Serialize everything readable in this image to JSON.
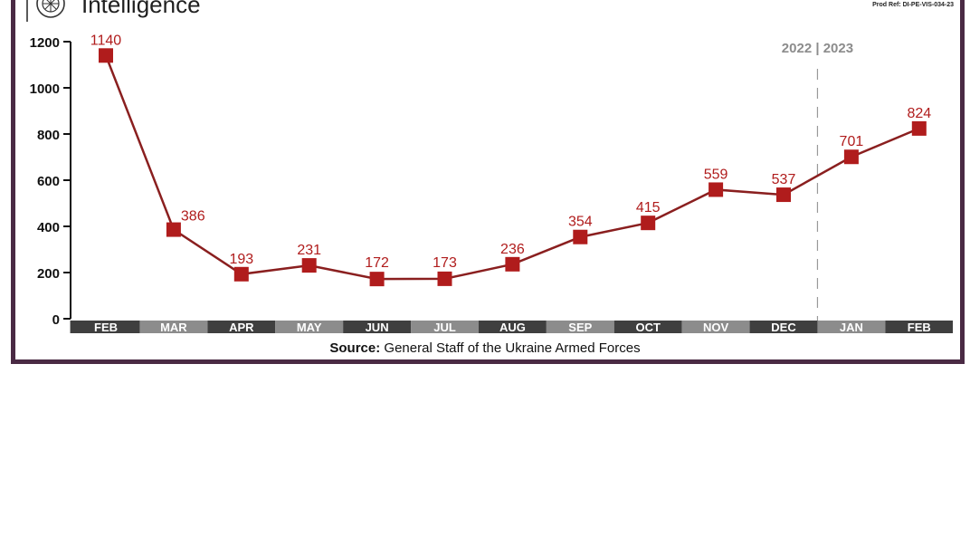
{
  "header": {
    "title": "Intelligence",
    "prod_ref": "Prod Ref: DI-PE-VIS-034-23"
  },
  "colors": {
    "accent": "#b01c1c",
    "line": "#8a1f1f",
    "frame": "#4a2a44",
    "year_label": "#8c8c8c"
  },
  "chart_data": {
    "type": "line",
    "categories": [
      "FEB",
      "MAR",
      "APR",
      "MAY",
      "JUN",
      "JUL",
      "AUG",
      "SEP",
      "OCT",
      "NOV",
      "DEC",
      "JAN",
      "FEB"
    ],
    "series": [
      {
        "values": [
          1140,
          386,
          193,
          231,
          172,
          173,
          236,
          354,
          415,
          559,
          537,
          701,
          824
        ]
      }
    ],
    "ylim": [
      0,
      1200
    ],
    "yticks": [
      0,
      200,
      400,
      600,
      800,
      1000,
      1200
    ],
    "year_divider_label": "2022 | 2023",
    "grid": false,
    "data_labels": true
  },
  "source": {
    "prefix": "Source:",
    "text": " General Staff of the Ukraine Armed Forces"
  }
}
